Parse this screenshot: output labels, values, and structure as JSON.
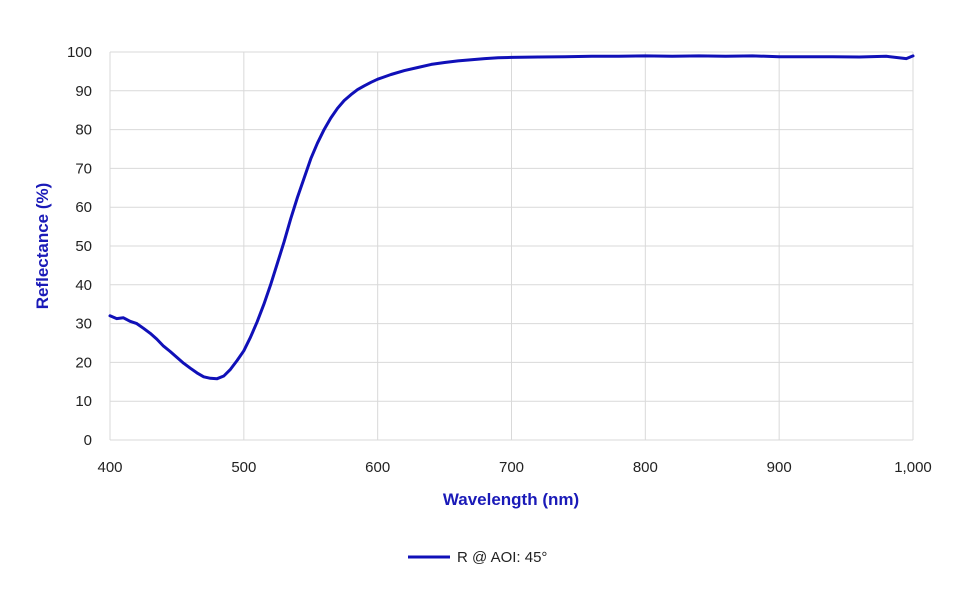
{
  "chart_data": {
    "type": "line",
    "xlabel": "Wavelength (nm)",
    "ylabel": "Reflectance (%)",
    "xlim": [
      400,
      1000
    ],
    "ylim": [
      0,
      100
    ],
    "x_ticks": [
      400,
      500,
      600,
      700,
      800,
      900,
      1000
    ],
    "x_tick_labels": [
      "400",
      "500",
      "600",
      "700",
      "800",
      "900",
      "1,000"
    ],
    "y_ticks": [
      0,
      10,
      20,
      30,
      40,
      50,
      60,
      70,
      80,
      90,
      100
    ],
    "y_tick_labels": [
      "0",
      "10",
      "20",
      "30",
      "40",
      "50",
      "60",
      "70",
      "80",
      "90",
      "100"
    ],
    "grid": true,
    "legend_position": "bottom-center",
    "colors": {
      "series": "#1010b8",
      "axis_title": "#1a1ab8",
      "grid": "#d9d9d9"
    },
    "series": [
      {
        "name": "R @ AOI: 45°",
        "x": [
          400,
          405,
          410,
          415,
          420,
          425,
          430,
          435,
          440,
          445,
          450,
          455,
          460,
          465,
          470,
          475,
          480,
          485,
          490,
          495,
          500,
          505,
          510,
          515,
          520,
          525,
          530,
          535,
          540,
          545,
          550,
          555,
          560,
          565,
          570,
          575,
          580,
          585,
          590,
          595,
          600,
          610,
          620,
          630,
          640,
          650,
          660,
          670,
          680,
          690,
          700,
          720,
          740,
          760,
          780,
          800,
          820,
          840,
          860,
          880,
          900,
          920,
          940,
          960,
          980,
          995,
          1000
        ],
        "y": [
          32.0,
          31.3,
          31.5,
          30.6,
          30.0,
          28.8,
          27.5,
          26.0,
          24.2,
          22.8,
          21.3,
          19.8,
          18.5,
          17.3,
          16.3,
          15.9,
          15.8,
          16.5,
          18.2,
          20.5,
          23.0,
          26.5,
          30.5,
          35.0,
          40.0,
          45.5,
          51.0,
          57.0,
          62.5,
          67.5,
          72.5,
          76.5,
          80.0,
          83.0,
          85.5,
          87.5,
          89.0,
          90.3,
          91.3,
          92.2,
          93.0,
          94.2,
          95.2,
          96.0,
          96.8,
          97.3,
          97.7,
          98.0,
          98.3,
          98.5,
          98.6,
          98.7,
          98.8,
          98.9,
          98.9,
          99.0,
          98.9,
          99.0,
          98.9,
          99.0,
          98.8,
          98.8,
          98.8,
          98.7,
          98.9,
          98.3,
          99.0
        ]
      }
    ]
  }
}
